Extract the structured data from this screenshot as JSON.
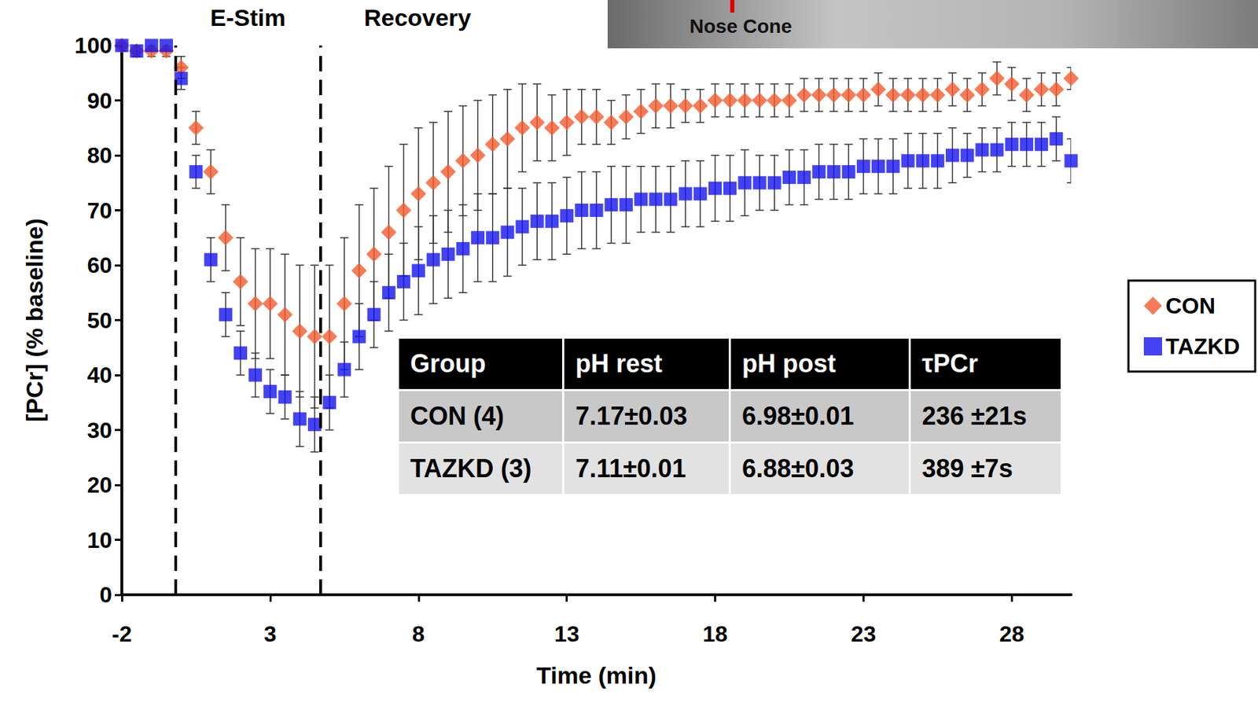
{
  "chart_data": {
    "type": "scatter",
    "x_label": "Time (min)",
    "y_label": "[PCr] (% baseline)",
    "xlim": [
      -2,
      30
    ],
    "xticks": [
      -2,
      3,
      8,
      13,
      18,
      23,
      28
    ],
    "ylim": [
      0,
      100
    ],
    "yticks": [
      0,
      10,
      20,
      30,
      40,
      50,
      60,
      70,
      80,
      90,
      100
    ],
    "grid": false,
    "legend": "right",
    "phases": [
      {
        "label": "E-Stim",
        "x": -0.2
      },
      {
        "label": "Recovery",
        "x": 4.7
      }
    ],
    "x": [
      -2,
      -1.5,
      -1,
      -0.5,
      0,
      0.5,
      1,
      1.5,
      2,
      2.5,
      3,
      3.5,
      4,
      4.5,
      5,
      5.5,
      6,
      6.5,
      7,
      7.5,
      8,
      8.5,
      9,
      9.5,
      10,
      10.5,
      11,
      11.5,
      12,
      12.5,
      13,
      13.5,
      14,
      14.5,
      15,
      15.5,
      16,
      16.5,
      17,
      17.5,
      18,
      18.5,
      19,
      19.5,
      20,
      20.5,
      21,
      21.5,
      22,
      22.5,
      23,
      23.5,
      24,
      24.5,
      25,
      25.5,
      26,
      26.5,
      27,
      27.5,
      28,
      28.5,
      29,
      29.5,
      30
    ],
    "series": [
      {
        "name": "CON",
        "color": "#f55a2c",
        "marker": "diamond",
        "values": [
          100,
          99,
          99,
          99,
          96,
          85,
          77,
          65,
          57,
          53,
          53,
          51,
          48,
          47,
          47,
          53,
          59,
          62,
          66,
          70,
          73,
          75,
          77,
          79,
          80,
          82,
          83,
          85,
          86,
          85,
          86,
          87,
          87,
          86,
          87,
          88,
          89,
          89,
          89,
          89,
          90,
          90,
          90,
          90,
          90,
          90,
          91,
          91,
          91,
          91,
          91,
          92,
          91,
          91,
          91,
          91,
          92,
          91,
          92,
          94,
          93,
          91,
          92,
          92,
          94
        ],
        "errors": [
          1,
          1,
          1,
          1,
          2,
          3,
          4,
          6,
          8,
          10,
          10,
          11,
          12,
          13,
          13,
          12,
          12,
          12,
          12,
          12,
          12,
          11,
          11,
          10,
          10,
          9,
          9,
          8,
          7,
          6,
          6,
          5,
          5,
          4,
          4,
          4,
          4,
          4,
          3,
          3,
          3,
          3,
          3,
          3,
          3,
          3,
          3,
          3,
          3,
          3,
          3,
          3,
          3,
          3,
          3,
          3,
          3,
          3,
          3,
          3,
          3,
          3,
          3,
          3,
          2
        ]
      },
      {
        "name": "TAZKD",
        "color": "#1414f0",
        "marker": "square",
        "values": [
          100,
          99,
          100,
          100,
          94,
          77,
          61,
          51,
          44,
          40,
          37,
          36,
          32,
          31,
          35,
          41,
          47,
          51,
          55,
          57,
          59,
          61,
          62,
          63,
          65,
          65,
          66,
          67,
          68,
          68,
          69,
          70,
          70,
          71,
          71,
          72,
          72,
          72,
          73,
          73,
          74,
          74,
          75,
          75,
          75,
          76,
          76,
          77,
          77,
          77,
          78,
          78,
          78,
          79,
          79,
          79,
          80,
          80,
          81,
          81,
          82,
          82,
          82,
          83,
          79
        ],
        "errors": [
          1,
          1,
          1,
          1,
          2,
          3,
          4,
          4,
          4,
          4,
          4,
          4,
          5,
          5,
          5,
          5,
          6,
          6,
          7,
          7,
          8,
          8,
          8,
          8,
          8,
          8,
          8,
          7,
          7,
          7,
          7,
          7,
          7,
          7,
          7,
          6,
          6,
          6,
          6,
          6,
          6,
          6,
          6,
          5,
          5,
          5,
          5,
          5,
          5,
          5,
          5,
          5,
          5,
          5,
          5,
          5,
          5,
          4,
          4,
          4,
          4,
          4,
          4,
          4,
          4
        ]
      }
    ]
  },
  "table": {
    "header": [
      "Group",
      "pH rest",
      "pH post",
      "τPCr"
    ],
    "rows": [
      [
        "CON (4)",
        "7.17±0.03",
        "6.98±0.01",
        "236 ±21s"
      ],
      [
        "TAZKD (3)",
        "7.11±0.01",
        "6.88±0.03",
        "389 ±7s"
      ]
    ]
  },
  "image_label": "Nose Cone"
}
